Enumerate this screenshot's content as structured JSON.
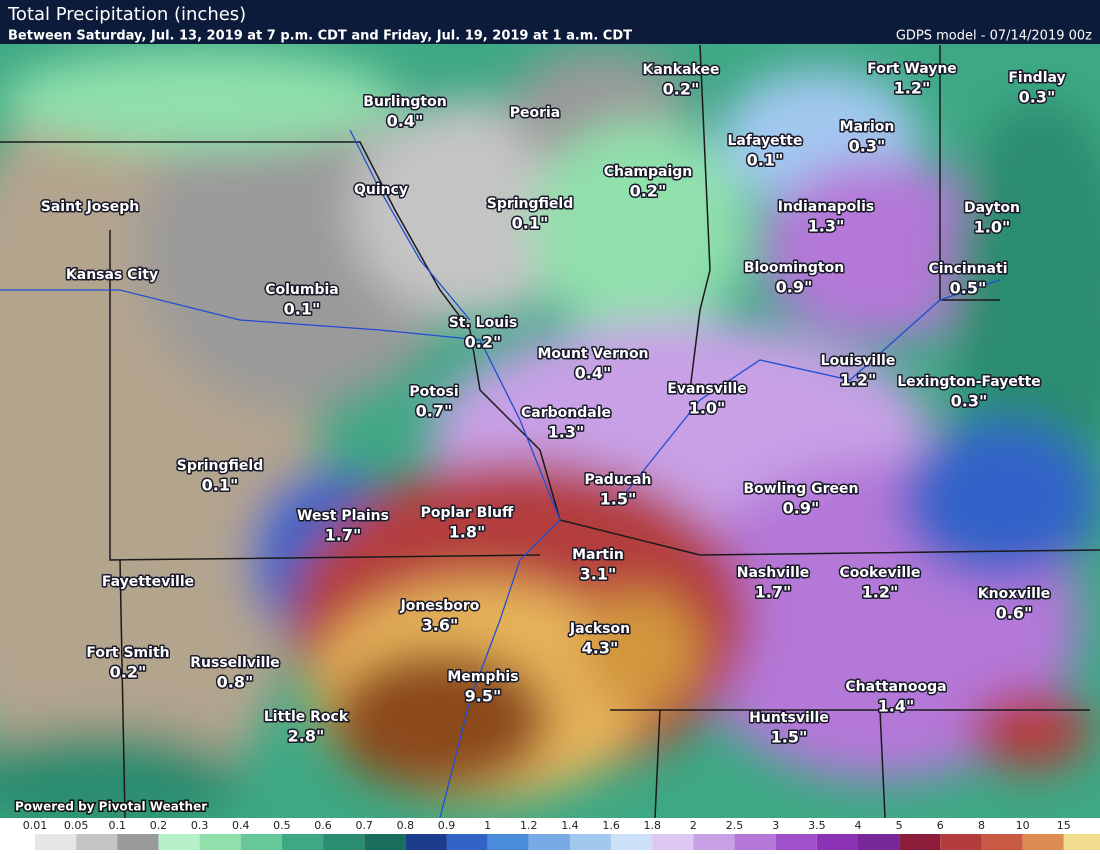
{
  "header": {
    "title": "Total Precipitation (inches)",
    "subtitle": "Between Saturday, Jul. 13, 2019 at 7 p.m. CDT and Friday, Jul. 19, 2019 at 1 a.m. CDT",
    "model": "GDPS model - 07/14/2019 00z"
  },
  "credit": "Powered by Pivotal Weather",
  "cities": [
    {
      "name": "Burlington",
      "amount": "0.4\""
    },
    {
      "name": "Peoria"
    },
    {
      "name": "Kankakee",
      "amount": "0.2\""
    },
    {
      "name": "Fort Wayne",
      "amount": "1.2\""
    },
    {
      "name": "Findlay",
      "amount": "0.3\""
    },
    {
      "name": "Lafayette",
      "amount": "0.1\""
    },
    {
      "name": "Marion",
      "amount": "0.3\""
    },
    {
      "name": "Champaign",
      "amount": "0.2\""
    },
    {
      "name": "Quincy"
    },
    {
      "name": "Springfield",
      "amount": "0.1\""
    },
    {
      "name": "Indianapolis",
      "amount": "1.3\""
    },
    {
      "name": "Dayton",
      "amount": "1.0\""
    },
    {
      "name": "Saint Joseph"
    },
    {
      "name": "Kansas City"
    },
    {
      "name": "Bloomington",
      "amount": "0.9\""
    },
    {
      "name": "Cincinnati",
      "amount": "0.5\""
    },
    {
      "name": "Columbia",
      "amount": "0.1\""
    },
    {
      "name": "St. Louis",
      "amount": "0.2\""
    },
    {
      "name": "Mount Vernon",
      "amount": "0.4\""
    },
    {
      "name": "Louisville",
      "amount": "1.2\""
    },
    {
      "name": "Lexington-Fayette",
      "amount": "0.3\""
    },
    {
      "name": "Evansville",
      "amount": "1.0\""
    },
    {
      "name": "Potosi",
      "amount": "0.7\""
    },
    {
      "name": "Carbondale",
      "amount": "1.3\""
    },
    {
      "name": "Springfield",
      "amount": "0.1\""
    },
    {
      "name": "Paducah",
      "amount": "1.5\""
    },
    {
      "name": "Bowling Green",
      "amount": "0.9\""
    },
    {
      "name": "West Plains",
      "amount": "1.7\""
    },
    {
      "name": "Poplar Bluff",
      "amount": "1.8\""
    },
    {
      "name": "Martin",
      "amount": "3.1\""
    },
    {
      "name": "Nashville",
      "amount": "1.7\""
    },
    {
      "name": "Cookeville",
      "amount": "1.2\""
    },
    {
      "name": "Fayetteville"
    },
    {
      "name": "Knoxville",
      "amount": "0.6\""
    },
    {
      "name": "Jonesboro",
      "amount": "3.6\""
    },
    {
      "name": "Jackson",
      "amount": "4.3\""
    },
    {
      "name": "Fort Smith",
      "amount": "0.2\""
    },
    {
      "name": "Russellville",
      "amount": "0.8\""
    },
    {
      "name": "Memphis",
      "amount": "9.5\""
    },
    {
      "name": "Chattanooga",
      "amount": "1.4\""
    },
    {
      "name": "Little Rock",
      "amount": "2.8\""
    },
    {
      "name": "Huntsville",
      "amount": "1.5\""
    }
  ],
  "legend": {
    "labels": [
      "0.01",
      "0.05",
      "0.1",
      "0.2",
      "0.3",
      "0.4",
      "0.5",
      "0.6",
      "0.7",
      "0.8",
      "0.9",
      "1",
      "1.2",
      "1.4",
      "1.6",
      "1.8",
      "2",
      "2.5",
      "3",
      "3.5",
      "4",
      "5",
      "6",
      "8",
      "10",
      "15"
    ],
    "colors": [
      "#ffffff",
      "#e6e6e6",
      "#c4c4c4",
      "#9a9a9a",
      "#b6f0c8",
      "#90e0ac",
      "#66c898",
      "#3ea884",
      "#2a8c70",
      "#1c6e5c",
      "#1e3c8c",
      "#3264c8",
      "#4c8cdc",
      "#7aaae6",
      "#a2c8f0",
      "#cce0f8",
      "#dcc8f0",
      "#c8a0e6",
      "#b478d8",
      "#a050c8",
      "#8c32b4",
      "#782896",
      "#8c1e3c",
      "#b43c3c",
      "#c85a46",
      "#dc8c50",
      "#f0dc8c",
      "#e6b45a",
      "#d2963c",
      "#b46e28",
      "#8c4a1e",
      "#643214"
    ]
  }
}
